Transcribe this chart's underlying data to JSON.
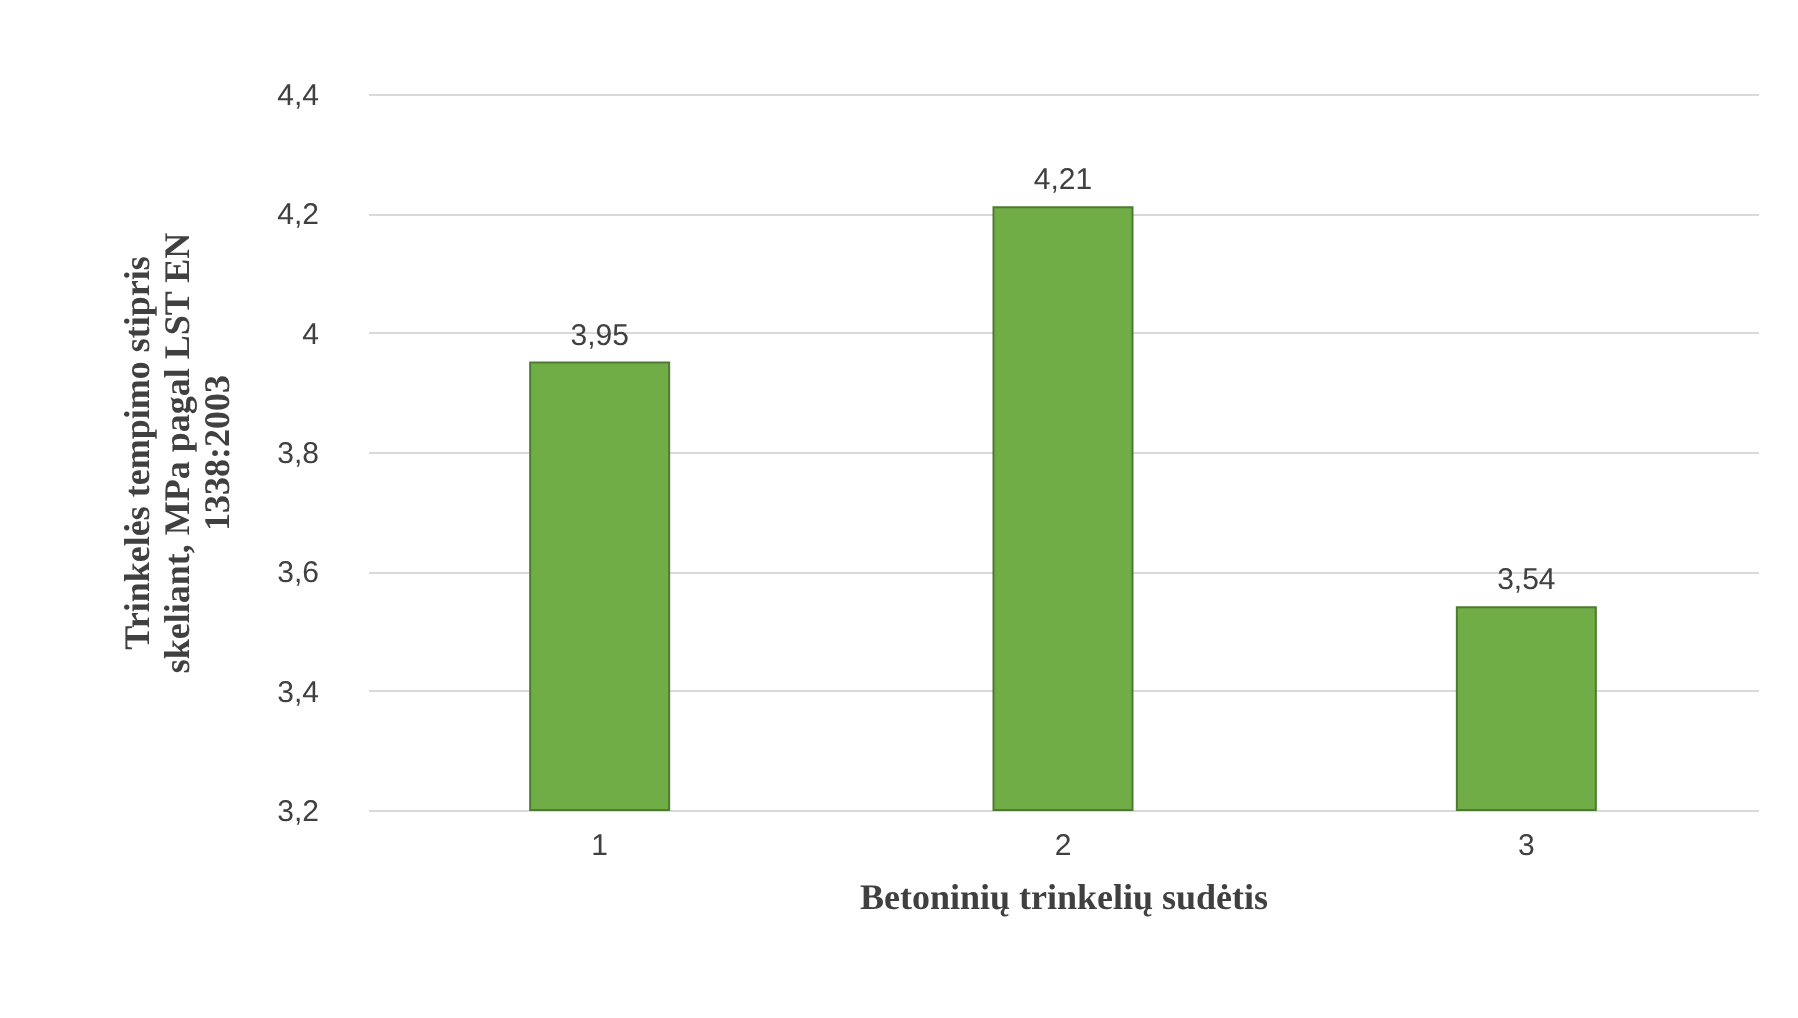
{
  "chart_data": {
    "type": "bar",
    "xlabel": "Betoninių trinkelių sudėtis",
    "ylabel": "Trinkelės tempimo stipris skeliant, MPa pagal LST EN 1338:2003",
    "categories": [
      "1",
      "2",
      "3"
    ],
    "values": [
      3.95,
      4.21,
      3.54
    ],
    "value_labels": [
      "3,95",
      "4,21",
      "3,54"
    ],
    "color": "#70ad47",
    "ylim": [
      3.2,
      4.4
    ],
    "yticks": [
      {
        "value": 3.2,
        "label": "3,2"
      },
      {
        "value": 3.4,
        "label": "3,4"
      },
      {
        "value": 3.6,
        "label": "3,6"
      },
      {
        "value": 3.8,
        "label": "3,8"
      },
      4,
      {
        "value": 4.2,
        "label": "4,2"
      },
      {
        "value": 4.4,
        "label": "4,4"
      }
    ],
    "grid": "y"
  }
}
